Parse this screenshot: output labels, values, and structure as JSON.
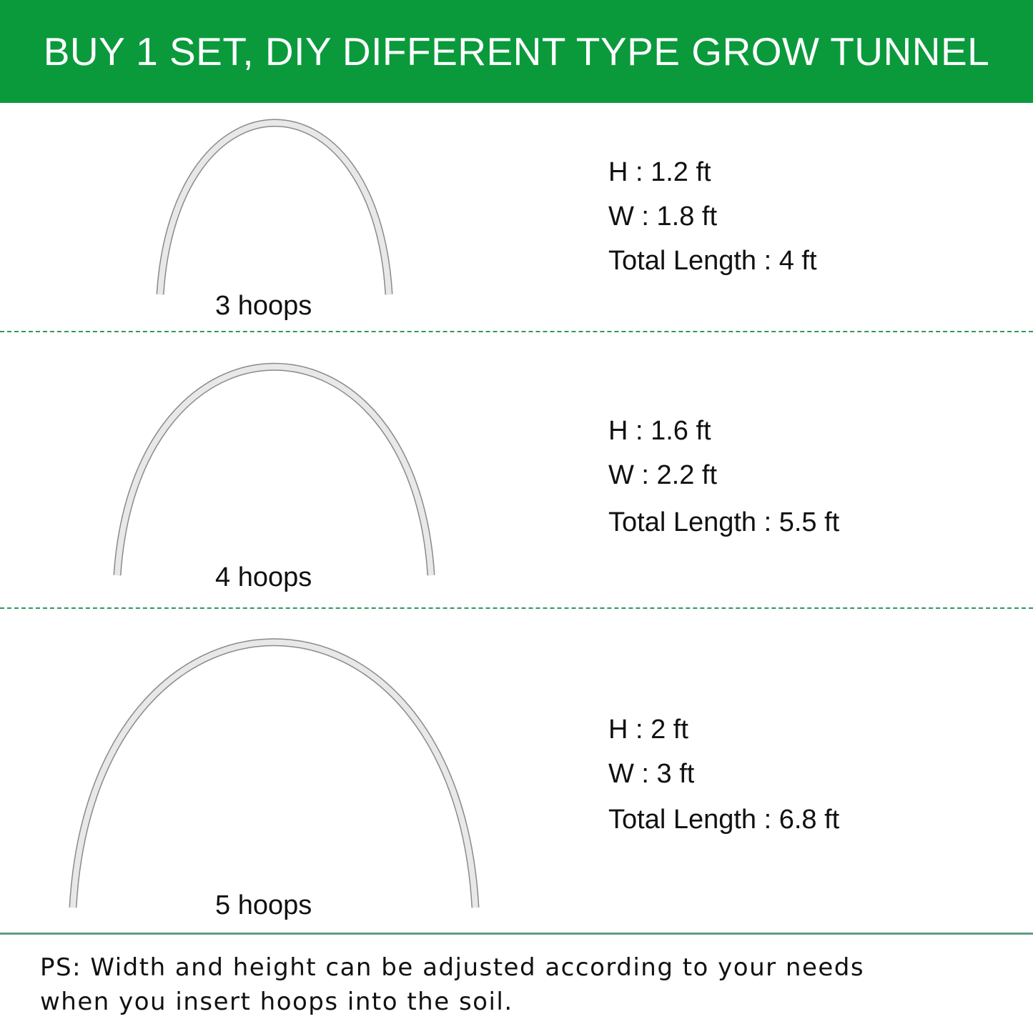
{
  "header": {
    "title": "BUY 1 SET, DIY DIFFERENT TYPE GROW TUNNEL",
    "background": "#0a9a3c"
  },
  "configs": [
    {
      "label": "3 hoops",
      "height": "H : 1.2 ft",
      "width": "W : 1.8 ft",
      "total": "Total Length : 4 ft"
    },
    {
      "label": "4 hoops",
      "height": "H : 1.6 ft",
      "width": "W : 2.2 ft",
      "total": "Total Length : 5.5 ft"
    },
    {
      "label": "5 hoops",
      "height": "H : 2 ft",
      "width": "W : 3 ft",
      "total": "Total Length : 6.8 ft"
    }
  ],
  "note": {
    "line1": "PS: Width and height can be adjusted according to your needs",
    "line2": "when you insert hoops into the soil."
  }
}
